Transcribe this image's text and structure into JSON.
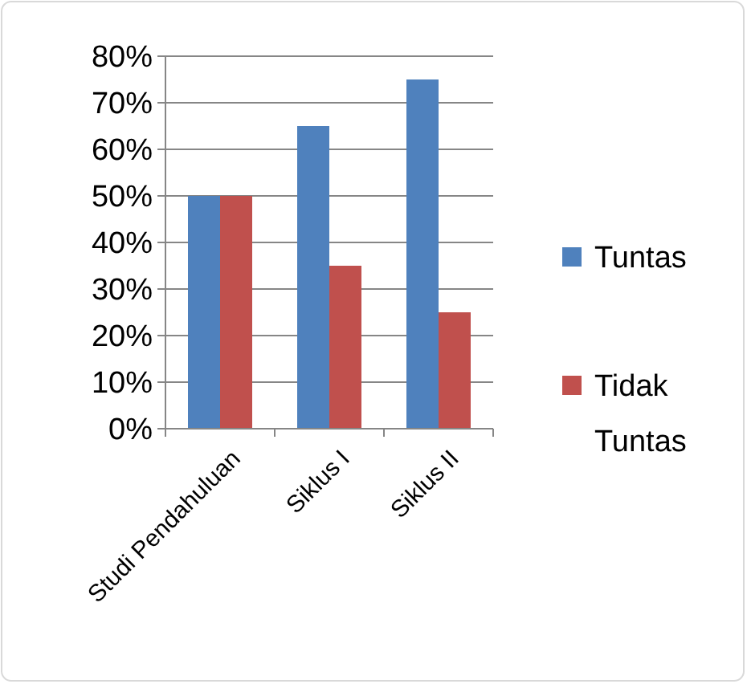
{
  "chart_data": {
    "type": "bar",
    "categories": [
      "Studi Pendahuluan",
      "Siklus I",
      "Siklus II"
    ],
    "series": [
      {
        "name": "Tuntas",
        "color": "#4f81bd",
        "values": [
          50,
          65,
          75
        ]
      },
      {
        "name": "Tidak Tuntas",
        "color": "#c0504d",
        "values": [
          50,
          35,
          25
        ]
      }
    ],
    "ylim": [
      0,
      80
    ],
    "yticks": [
      {
        "value": 0,
        "label": "0%"
      },
      {
        "value": 10,
        "label": "10%"
      },
      {
        "value": 20,
        "label": "20%"
      },
      {
        "value": 30,
        "label": "30%"
      },
      {
        "value": 40,
        "label": "40%"
      },
      {
        "value": 50,
        "label": "50%"
      },
      {
        "value": 60,
        "label": "60%"
      },
      {
        "value": 70,
        "label": "70%"
      },
      {
        "value": 80,
        "label": "80%"
      }
    ],
    "grid": "y",
    "legend": "right"
  }
}
